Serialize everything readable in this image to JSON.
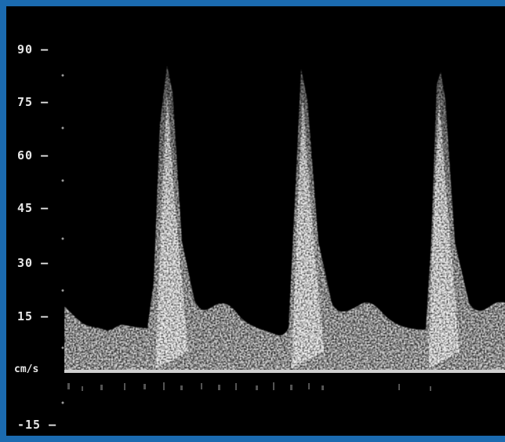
{
  "scale": {
    "unit": "cm/s",
    "ticks": [
      {
        "label": "90 –",
        "value": 90
      },
      {
        "label": "75 –",
        "value": 75
      },
      {
        "label": "60 –",
        "value": 60
      },
      {
        "label": "45 –",
        "value": 45
      },
      {
        "label": "30 –",
        "value": 30
      },
      {
        "label": "15 –",
        "value": 15
      },
      {
        "label": "-15 –",
        "value": -15
      }
    ]
  },
  "colors": {
    "frame_border": "#1b6bb0",
    "background": "#000000",
    "waveform": "#ffffff",
    "baseline": "#cfcfcf"
  }
}
